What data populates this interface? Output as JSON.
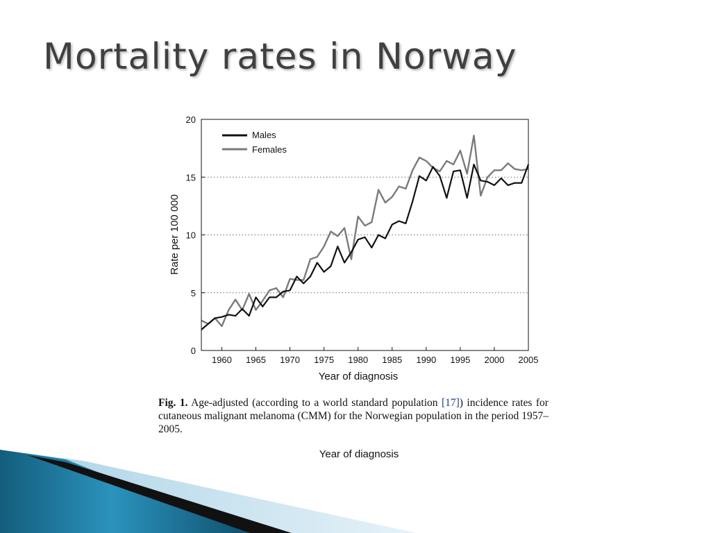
{
  "slide": {
    "title": "Mortality rates in Norway",
    "caption_fig": "Fig. 1.",
    "caption_pre": "Age-adjusted (according to a world standard population ",
    "caption_ref": "[17]",
    "caption_post": ") incidence rates for cutaneous malignant melanoma (CMM) for the Norwegian population in the period 1957–2005.",
    "repeated_xlabel": "Year of diagnosis"
  },
  "colors": {
    "males": "#111111",
    "females": "#7a7a7a",
    "decor_blue": "#1e7fa3",
    "decor_light": "#cfe6f1"
  },
  "chart_data": {
    "type": "line",
    "title": "",
    "xlabel": "Year of diagnosis",
    "ylabel": "Rate per 100 000",
    "xlim": [
      1957,
      2005
    ],
    "ylim": [
      0,
      20
    ],
    "xticks": [
      1960,
      1965,
      1970,
      1975,
      1980,
      1985,
      1990,
      1995,
      2000,
      2005
    ],
    "yticks": [
      0,
      5,
      10,
      15,
      20
    ],
    "grid": "horizontal dotted at 5, 10, 15",
    "legend": "top-left",
    "x": [
      1957,
      1958,
      1959,
      1960,
      1961,
      1962,
      1963,
      1964,
      1965,
      1966,
      1967,
      1968,
      1969,
      1970,
      1971,
      1972,
      1973,
      1974,
      1975,
      1976,
      1977,
      1978,
      1979,
      1980,
      1981,
      1982,
      1983,
      1984,
      1985,
      1986,
      1987,
      1988,
      1989,
      1990,
      1991,
      1992,
      1993,
      1994,
      1995,
      1996,
      1997,
      1998,
      1999,
      2000,
      2001,
      2002,
      2003,
      2004,
      2005
    ],
    "series": [
      {
        "name": "Males",
        "values": [
          1.8,
          2.3,
          2.8,
          2.9,
          3.1,
          3.0,
          3.6,
          3.0,
          4.6,
          3.8,
          4.6,
          4.6,
          5.1,
          5.2,
          6.4,
          5.8,
          6.4,
          7.6,
          6.8,
          7.3,
          9.0,
          7.6,
          8.5,
          9.6,
          9.8,
          8.9,
          10.0,
          9.7,
          10.9,
          11.2,
          11.0,
          12.9,
          15.1,
          14.7,
          15.9,
          15.1,
          13.2,
          15.5,
          15.6,
          13.2,
          16.1,
          14.7,
          14.6,
          14.3,
          14.9,
          14.3,
          14.5,
          14.5,
          16.1
        ]
      },
      {
        "name": "Females",
        "values": [
          2.6,
          2.3,
          2.8,
          2.1,
          3.5,
          4.4,
          3.5,
          4.9,
          3.5,
          4.3,
          5.2,
          5.4,
          4.6,
          6.2,
          6.1,
          6.1,
          7.9,
          8.1,
          9.0,
          10.3,
          9.9,
          10.6,
          7.9,
          11.6,
          10.8,
          11.1,
          13.9,
          12.8,
          13.3,
          14.2,
          14.0,
          15.6,
          16.7,
          16.4,
          15.8,
          15.5,
          16.4,
          16.1,
          17.3,
          15.3,
          18.6,
          13.4,
          15.0,
          15.6,
          15.6,
          16.2,
          15.7,
          15.6,
          15.7
        ]
      }
    ]
  }
}
